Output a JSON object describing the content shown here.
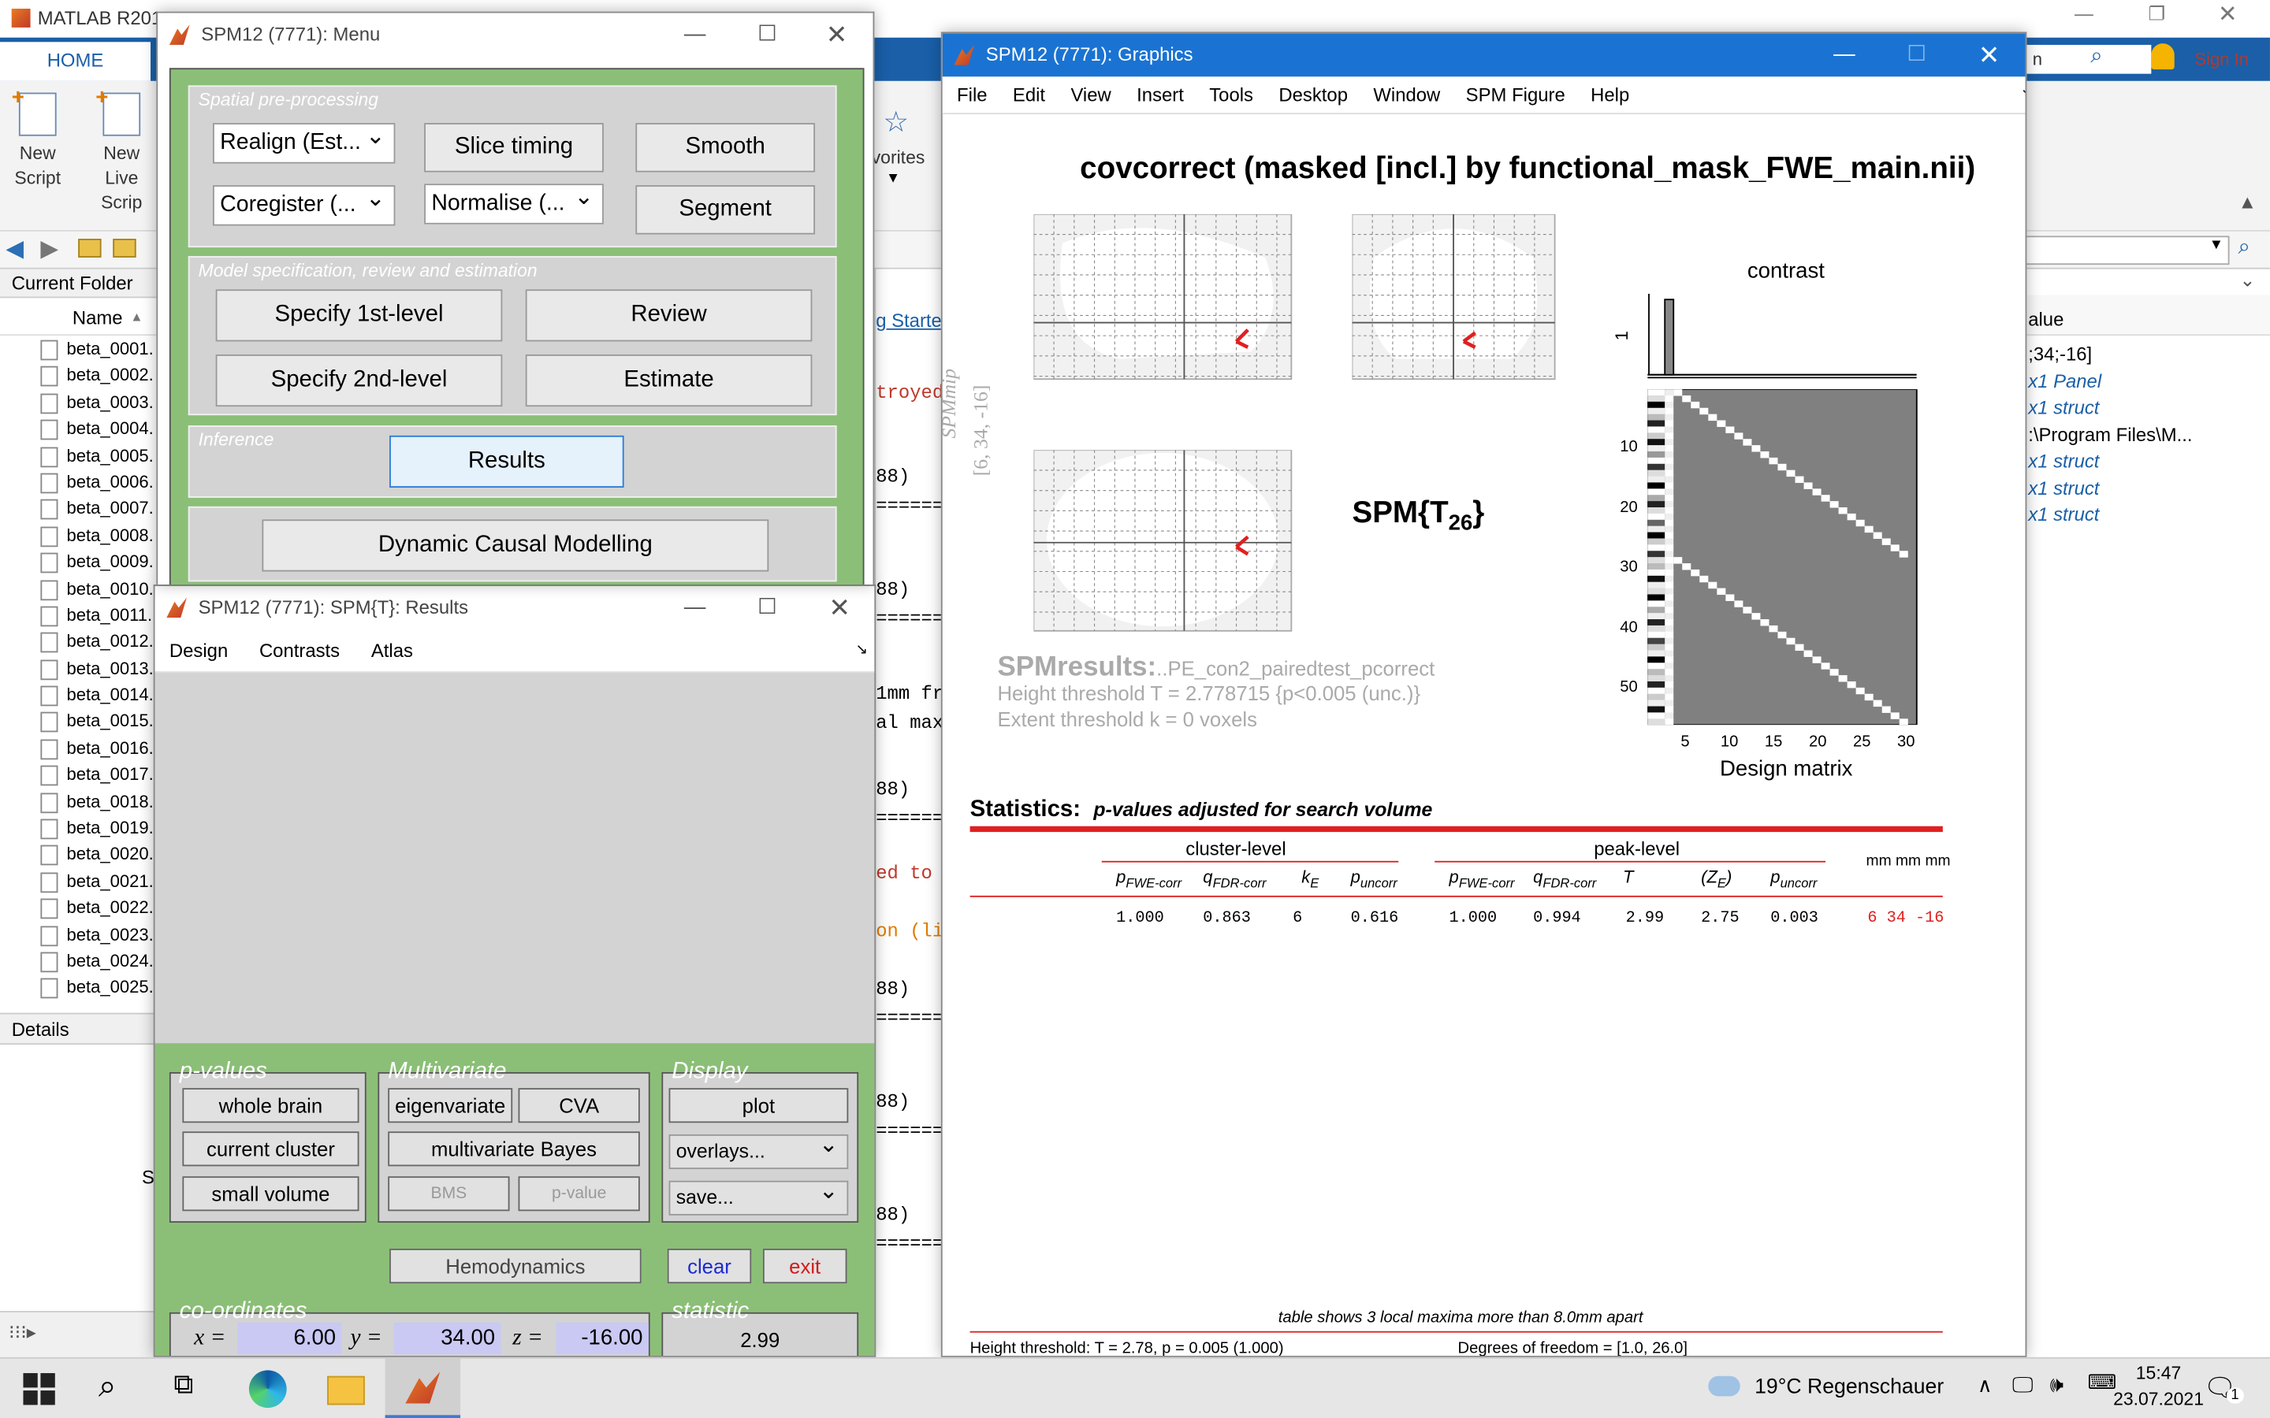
{
  "matlab": {
    "title": "MATLAB R201",
    "ribbon_tab": "HOME",
    "tools": [
      {
        "label": "New",
        "label2": "Script"
      },
      {
        "label": "New",
        "label2": "Live Scrip"
      }
    ],
    "favorites_label": "vorites",
    "current_folder_label": "Current Folder",
    "name_column": "Name",
    "files": [
      "beta_0001.",
      "beta_0002.",
      "beta_0003.",
      "beta_0004.",
      "beta_0005.",
      "beta_0006.",
      "beta_0007.",
      "beta_0008.",
      "beta_0009.",
      "beta_0010.",
      "beta_0011.",
      "beta_0012.",
      "beta_0013.",
      "beta_0014.",
      "beta_0015.",
      "beta_0016.",
      "beta_0017.",
      "beta_0018.",
      "beta_0019.",
      "beta_0020.",
      "beta_0021.",
      "beta_0022.",
      "beta_0023.",
      "beta_0024.",
      "beta_0025."
    ],
    "details_label": "Details",
    "details_fragment": "S",
    "search_fragment": "n",
    "sign_in": "Sign In",
    "getting_started": "g Started",
    "command_lines": [
      {
        "text": "troyed",
        "color": "#c0392b"
      },
      {
        "text": "88)",
        "color": "#000"
      },
      {
        "text": "=======",
        "color": "#000"
      },
      {
        "text": "88)",
        "color": "#000"
      },
      {
        "text": "=======",
        "color": "#000"
      },
      {
        "text": "1mm fr",
        "color": "#000"
      },
      {
        "text": "al max",
        "color": "#000"
      },
      {
        "text": "88)",
        "color": "#000"
      },
      {
        "text": "=======",
        "color": "#000"
      },
      {
        "text": "ed to",
        "color": "#c0392b"
      },
      {
        "text": "on (li",
        "color": "#e07b00"
      },
      {
        "text": "88)",
        "color": "#000"
      },
      {
        "text": "=======",
        "color": "#000"
      },
      {
        "text": "88)",
        "color": "#000"
      },
      {
        "text": "=======",
        "color": "#000"
      },
      {
        "text": "88)",
        "color": "#000"
      },
      {
        "text": "=======",
        "color": "#000"
      }
    ],
    "workspace_header": "alue",
    "workspace_rows": [
      {
        "text": ";34;-16]",
        "italic": false
      },
      {
        "text": "x1 Panel",
        "italic": true
      },
      {
        "text": "x1 struct",
        "italic": true
      },
      {
        "text": ":\\Program Files\\M...",
        "italic": false
      },
      {
        "text": "x1 struct",
        "italic": true
      },
      {
        "text": "x1 struct",
        "italic": true
      },
      {
        "text": "x1 struct",
        "italic": true
      }
    ]
  },
  "spm_menu": {
    "title": "SPM12 (7771): Menu",
    "group1_label": "Spatial pre-processing",
    "realign": "Realign (Est...",
    "slice_timing": "Slice timing",
    "smooth": "Smooth",
    "coregister": "Coregister (...",
    "normalise": "Normalise (...",
    "segment": "Segment",
    "group2_label": "Model specification, review and estimation",
    "specify1": "Specify 1st-level",
    "review": "Review",
    "specify2": "Specify 2nd-level",
    "estimate": "Estimate",
    "group3_label": "Inference",
    "results": "Results",
    "dcm": "Dynamic Causal Modelling"
  },
  "spm_results": {
    "title": "SPM12 (7771): SPM{T}: Results",
    "menu": [
      "Design",
      "Contrasts",
      "Atlas"
    ],
    "pvalues_label": "p-values",
    "whole_brain": "whole brain",
    "current_cluster": "current cluster",
    "small_volume": "small volume",
    "multivariate_label": "Multivariate",
    "eigenvariate": "eigenvariate",
    "cva": "CVA",
    "multivariate_bayes": "multivariate Bayes",
    "bms": "BMS",
    "pvalue_btn": "p-value",
    "display_label": "Display",
    "plot": "plot",
    "overlays": "overlays...",
    "save": "save...",
    "hemodynamics": "Hemodynamics",
    "clear": "clear",
    "exit": "exit",
    "coords_label": "co-ordinates",
    "x_label": "x =",
    "x": "6.00",
    "y_label": "y =",
    "y": "34.00",
    "z_label": "z =",
    "z": "-16.00",
    "statistic_label": "statistic",
    "statistic": "2.99"
  },
  "graphics": {
    "title": "SPM12 (7771): Graphics",
    "menu": [
      "File",
      "Edit",
      "View",
      "Insert",
      "Tools",
      "Desktop",
      "Window",
      "SPM Figure",
      "Help"
    ],
    "heading": "covcorrect (masked [incl.] by functional_mask_FWE_main.nii)",
    "spmmip_label": "SPMmip",
    "spmmip_coords": "[6, 34, -16]",
    "contrast_label": "contrast",
    "contrast_tick": "1",
    "stat_main": "SPM{T",
    "stat_sub": "26",
    "stat_close": "}",
    "spmresults_label": "SPMresults:",
    "spmresults_name": "..PE_con2_pairedtest_pcorrect",
    "height_threshold": "Height threshold T = 2.778715  {p<0.005 (unc.)}",
    "extent_threshold": "Extent threshold k = 0 voxels",
    "design_matrix_label": "Design matrix",
    "dm_yticks": [
      "10",
      "20",
      "30",
      "40",
      "50"
    ],
    "dm_xticks": [
      "5",
      "10",
      "15",
      "20",
      "25",
      "30"
    ],
    "statistics_label": "Statistics:",
    "statistics_sub": "p-values adjusted for search volume",
    "cluster_level": "cluster-level",
    "peak_level": "peak-level",
    "mm_label": "mm mm mm",
    "col_headers": [
      {
        "main": "p",
        "sub": "FWE-corr"
      },
      {
        "main": "q",
        "sub": "FDR-corr"
      },
      {
        "main": "k",
        "sub": "E"
      },
      {
        "main": "p",
        "sub": "uncorr"
      },
      {
        "main": "p",
        "sub": "FWE-corr"
      },
      {
        "main": "q",
        "sub": "FDR-corr"
      },
      {
        "main": "T",
        "sub": ""
      },
      {
        "main": "(Z",
        "sub": "E",
        "close": ")"
      },
      {
        "main": "p",
        "sub": "uncorr"
      }
    ],
    "row": [
      "1.000",
      "0.863",
      "6",
      "0.616",
      "1.000",
      "0.994",
      "2.99",
      "2.75",
      "0.003"
    ],
    "row_coords": "6  34 -16",
    "footer_note": "table shows 3 local maxima more than 8.0mm apart",
    "footer_left": "Height threshold: T = 2.78, p = 0.005 (1.000)",
    "footer_right": "Degrees of freedom = [1.0, 26.0]"
  },
  "taskbar": {
    "weather": "19°C  Regenschauer",
    "time": "15:47",
    "date": "23.07.2021",
    "notifications": "1"
  }
}
